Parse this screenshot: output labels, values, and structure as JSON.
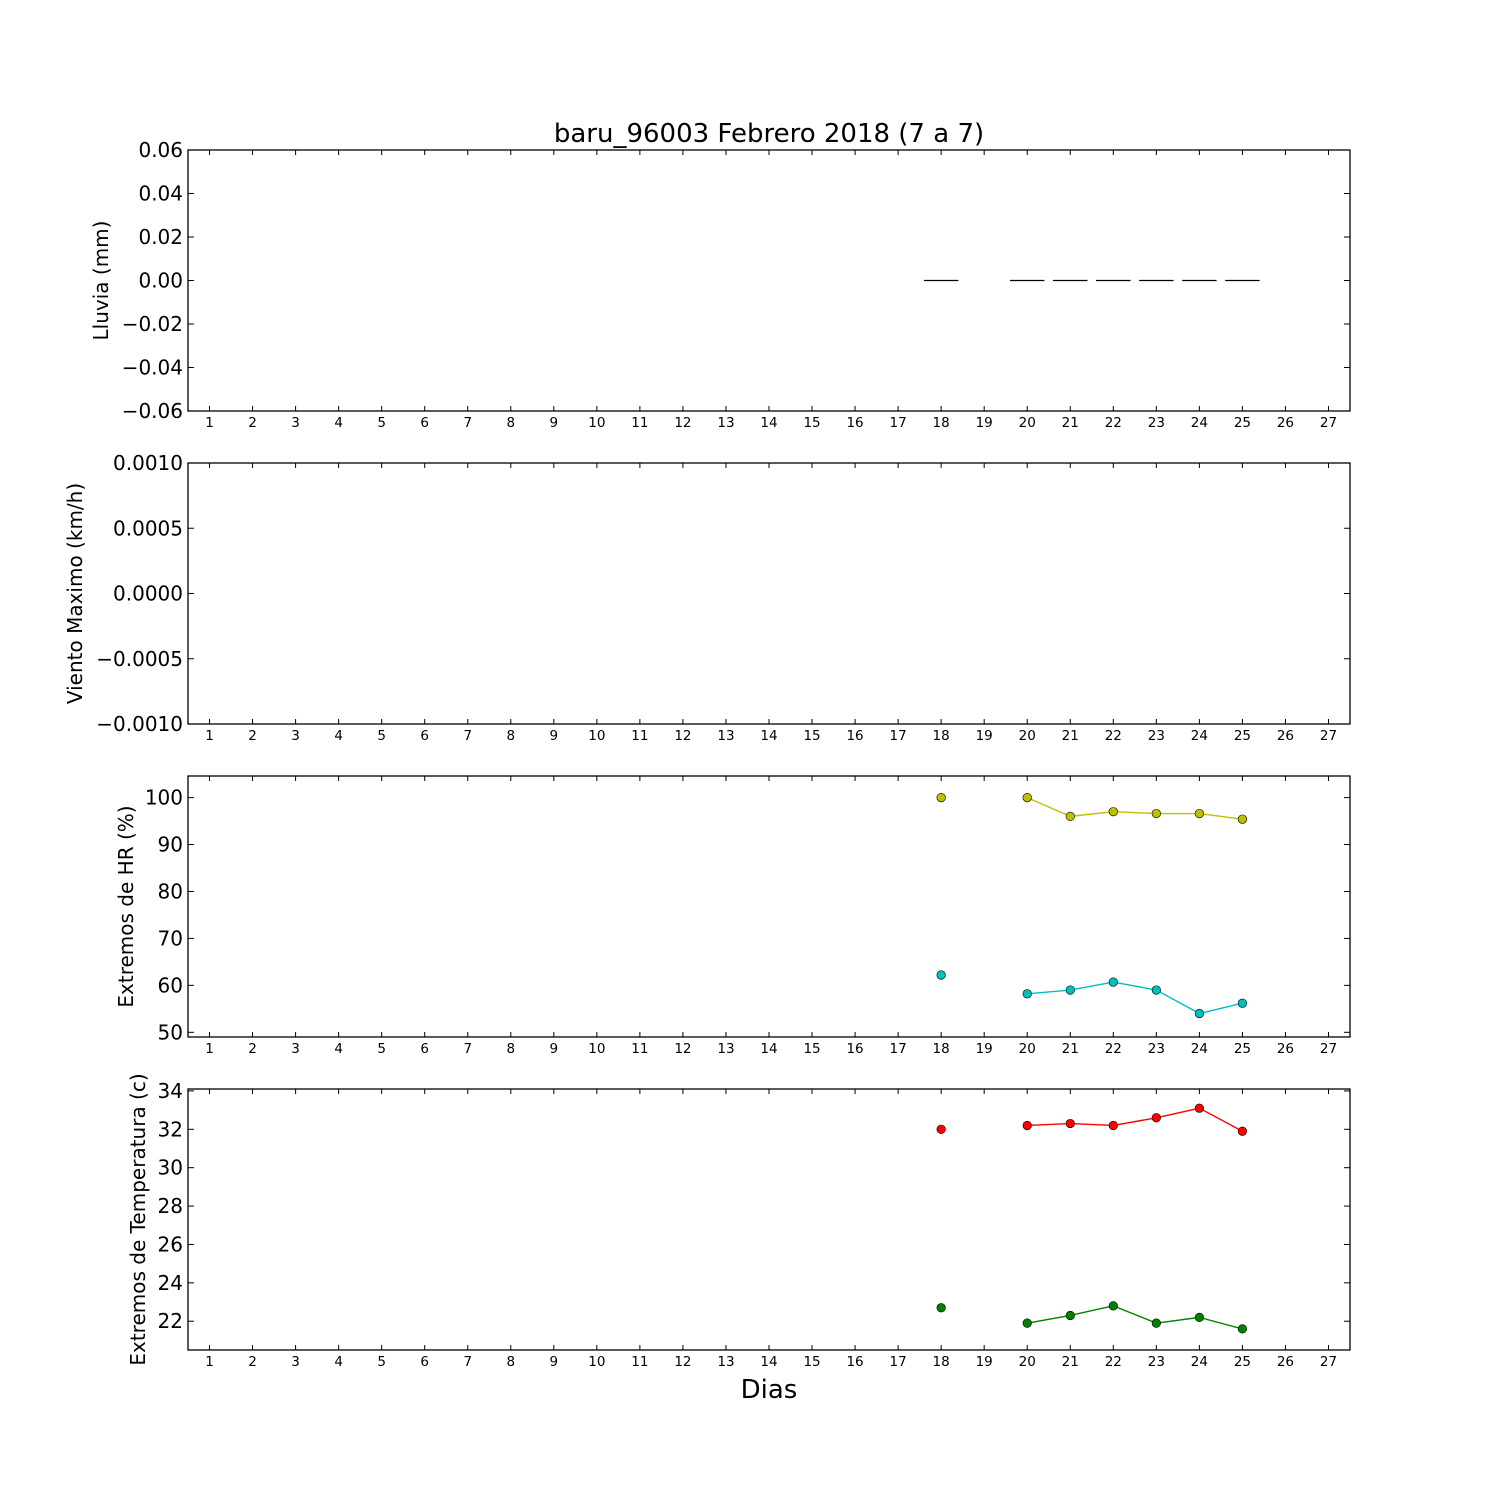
{
  "chart_data": {
    "type": "line",
    "title": "baru_96003 Febrero 2018  (7 a 7)",
    "xlabel": "Dias",
    "x_ticks": [
      "1",
      "2",
      "3",
      "4",
      "5",
      "6",
      "7",
      "8",
      "9",
      "10",
      "11",
      "12",
      "13",
      "14",
      "15",
      "16",
      "17",
      "18",
      "19",
      "20",
      "21",
      "22",
      "23",
      "24",
      "25",
      "26",
      "27"
    ],
    "xlim": [
      0.5,
      27.5
    ],
    "grid": false,
    "panels": [
      {
        "id": "lluvia",
        "ylabel": "Lluvia (mm)",
        "ylim": [
          -0.06,
          0.06
        ],
        "yticks": [
          0.06,
          0.04,
          0.02,
          0.0,
          -0.02,
          -0.04,
          -0.06
        ],
        "ytick_labels": [
          "0.06",
          "0.04",
          "0.02",
          "0.00",
          "−0.02",
          "−0.04",
          "−0.06"
        ],
        "bar_width": 0.8,
        "series": [
          {
            "style": "bars",
            "color": "#000000",
            "x": [
              18,
              20,
              21,
              22,
              23,
              24,
              25
            ],
            "y": [
              0,
              0,
              0,
              0,
              0,
              0,
              0
            ]
          }
        ]
      },
      {
        "id": "viento",
        "ylabel": "Viento Maximo (km/h)",
        "ylim": [
          -0.001,
          0.001
        ],
        "yticks": [
          0.001,
          0.0005,
          0.0,
          -0.0005,
          -0.001
        ],
        "ytick_labels": [
          "0.0010",
          "0.0005",
          "0.0000",
          "−0.0005",
          "−0.0010"
        ],
        "series": []
      },
      {
        "id": "hr",
        "ylabel": "Extremos de HR (%)",
        "ylim": [
          49,
          104.6
        ],
        "yticks": [
          100,
          90,
          80,
          70,
          60,
          50
        ],
        "ytick_labels": [
          "100",
          "90",
          "80",
          "70",
          "60",
          "50"
        ],
        "series": [
          {
            "style": "line-markers",
            "color": "#bfbf00",
            "x": [
              18,
              20,
              21,
              22,
              23,
              24,
              25
            ],
            "y": [
              100,
              100,
              96,
              97,
              96.6,
              96.6,
              95.4
            ]
          },
          {
            "style": "line-markers",
            "color": "#00bfbf",
            "x": [
              18,
              20,
              21,
              22,
              23,
              24,
              25
            ],
            "y": [
              62.2,
              58.2,
              59,
              60.7,
              59,
              54,
              56.2
            ]
          }
        ]
      },
      {
        "id": "temp",
        "ylabel": "Extremos de Temperatura (c)",
        "ylim": [
          20.5,
          34.1
        ],
        "yticks": [
          34,
          32,
          30,
          28,
          26,
          24,
          22
        ],
        "ytick_labels": [
          "34",
          "32",
          "30",
          "28",
          "26",
          "24",
          "22"
        ],
        "series": [
          {
            "style": "line-markers",
            "color": "#ff0000",
            "x": [
              18,
              20,
              21,
              22,
              23,
              24,
              25
            ],
            "y": [
              32,
              32.2,
              32.3,
              32.2,
              32.6,
              33.1,
              31.9
            ]
          },
          {
            "style": "line-markers",
            "color": "#008000",
            "x": [
              18,
              20,
              21,
              22,
              23,
              24,
              25
            ],
            "y": [
              22.7,
              21.9,
              22.3,
              22.8,
              21.9,
              22.2,
              21.6
            ]
          }
        ]
      }
    ]
  }
}
